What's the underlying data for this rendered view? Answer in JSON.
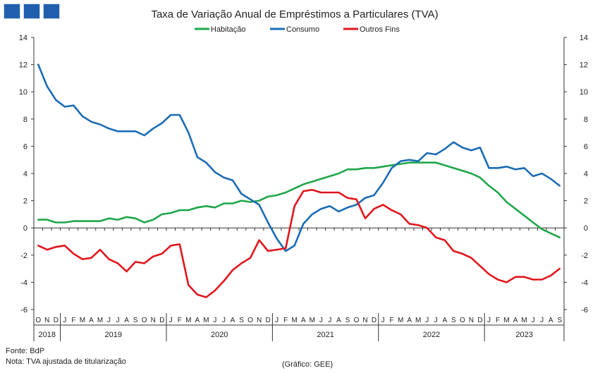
{
  "footer": {
    "source": "Fonte: BdP",
    "note": "Nota: TVA ajustada de titularização",
    "credit": "(Gráfico: GEE)"
  },
  "colors": {
    "habitacao": "#1fa64a",
    "consumo": "#1a6cb5",
    "outros": "#e0161d",
    "logo": "#1f5fae"
  },
  "chart_data": {
    "type": "line",
    "title": "Taxa de Variação Anual de Empréstimos  a Particulares (TVA)",
    "xlabel": "",
    "ylabel": "",
    "ylim": [
      -6,
      14
    ],
    "yticks": [
      -6,
      -4,
      -2,
      0,
      2,
      4,
      6,
      8,
      10,
      12,
      14
    ],
    "legend_position": "top",
    "grid": false,
    "x": [
      "O",
      "N",
      "D",
      "J",
      "F",
      "M",
      "A",
      "M",
      "J",
      "J",
      "A",
      "S",
      "O",
      "N",
      "D",
      "J",
      "F",
      "M",
      "A",
      "M",
      "J",
      "J",
      "A",
      "S",
      "O",
      "N",
      "D",
      "J",
      "F",
      "M",
      "A",
      "M",
      "J",
      "J",
      "A",
      "S",
      "O",
      "N",
      "D",
      "J",
      "F",
      "M",
      "A",
      "M",
      "J",
      "J",
      "A",
      "S",
      "O",
      "N",
      "D",
      "J",
      "F",
      "M",
      "A",
      "M",
      "J",
      "J",
      "A",
      "S"
    ],
    "years": [
      {
        "label": "2018",
        "start": 0,
        "end": 2
      },
      {
        "label": "2019",
        "start": 3,
        "end": 14
      },
      {
        "label": "2020",
        "start": 15,
        "end": 26
      },
      {
        "label": "2021",
        "start": 27,
        "end": 38
      },
      {
        "label": "2022",
        "start": 39,
        "end": 50
      },
      {
        "label": "2023",
        "start": 51,
        "end": 59
      }
    ],
    "series": [
      {
        "name": "Habitação",
        "color": "#1fa64a",
        "values": [
          0.6,
          0.6,
          0.4,
          0.4,
          0.5,
          0.5,
          0.5,
          0.5,
          0.7,
          0.6,
          0.8,
          0.7,
          0.4,
          0.6,
          1.0,
          1.1,
          1.3,
          1.3,
          1.5,
          1.6,
          1.5,
          1.8,
          1.8,
          2.0,
          1.9,
          2.0,
          2.3,
          2.4,
          2.6,
          2.9,
          3.2,
          3.4,
          3.6,
          3.8,
          4.0,
          4.3,
          4.3,
          4.4,
          4.4,
          4.5,
          4.6,
          4.7,
          4.8,
          4.8,
          4.8,
          4.8,
          4.6,
          4.4,
          4.2,
          4.0,
          3.7,
          3.1,
          2.6,
          1.9,
          1.4,
          0.9,
          0.4,
          -0.1,
          -0.4,
          -0.7
        ]
      },
      {
        "name": "Consumo",
        "color": "#1a6cb5",
        "values": [
          12.0,
          10.4,
          9.4,
          8.9,
          9.0,
          8.2,
          7.8,
          7.6,
          7.3,
          7.1,
          7.1,
          7.1,
          6.8,
          7.3,
          7.7,
          8.3,
          8.3,
          7.0,
          5.2,
          4.8,
          4.1,
          3.7,
          3.5,
          2.5,
          2.1,
          1.7,
          0.4,
          -0.8,
          -1.7,
          -1.3,
          0.3,
          1.0,
          1.4,
          1.6,
          1.2,
          1.5,
          1.7,
          2.2,
          2.4,
          3.3,
          4.4,
          4.9,
          5.0,
          4.9,
          5.5,
          5.4,
          5.8,
          6.3,
          5.9,
          5.7,
          5.9,
          4.4,
          4.4,
          4.5,
          4.3,
          4.4,
          3.8,
          4.0,
          3.6,
          3.1
        ]
      },
      {
        "name": "Outros Fins",
        "color": "#e0161d",
        "values": [
          -1.3,
          -1.6,
          -1.4,
          -1.3,
          -1.9,
          -2.3,
          -2.2,
          -1.6,
          -2.3,
          -2.6,
          -3.2,
          -2.5,
          -2.6,
          -2.1,
          -1.9,
          -1.3,
          -1.2,
          -4.2,
          -4.9,
          -5.1,
          -4.6,
          -3.9,
          -3.1,
          -2.6,
          -2.2,
          -0.9,
          -1.7,
          -1.6,
          -1.5,
          1.6,
          2.7,
          2.8,
          2.6,
          2.6,
          2.6,
          2.2,
          2.1,
          0.7,
          1.4,
          1.7,
          1.3,
          1.0,
          0.3,
          0.2,
          0.0,
          -0.7,
          -0.9,
          -1.7,
          -1.9,
          -2.2,
          -2.8,
          -3.4,
          -3.8,
          -4.0,
          -3.6,
          -3.6,
          -3.8,
          -3.8,
          -3.5,
          -3.0
        ]
      }
    ]
  }
}
